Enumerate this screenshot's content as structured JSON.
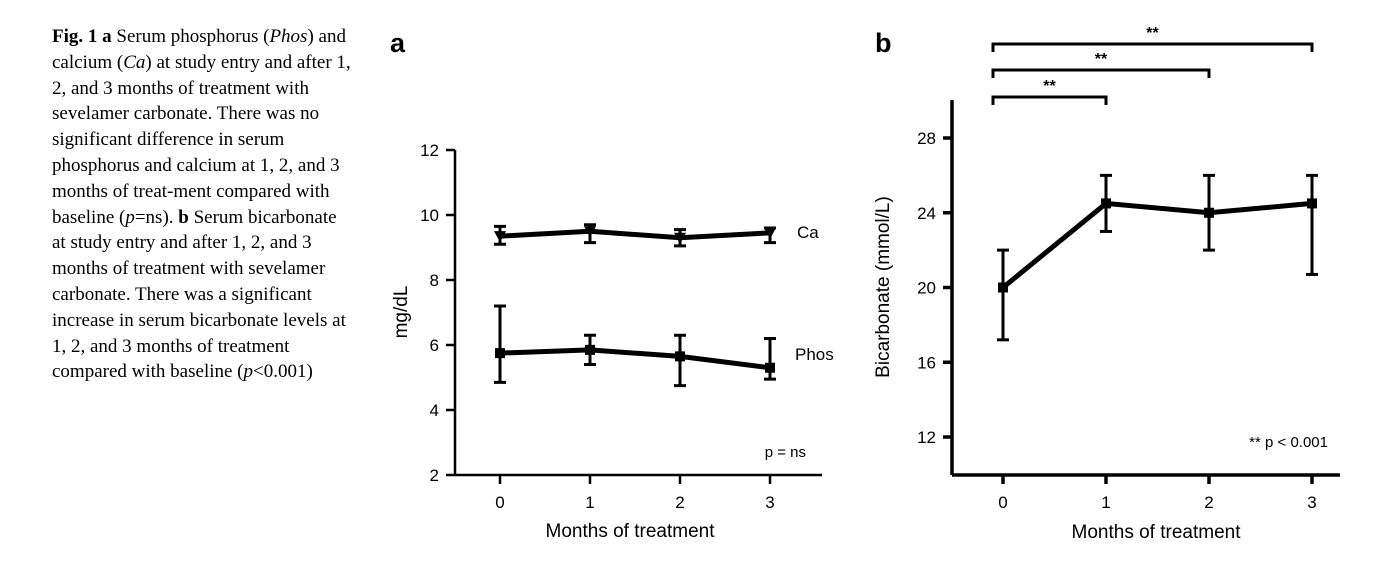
{
  "caption": {
    "segments": [
      {
        "t": "Fig. 1",
        "s": "b"
      },
      {
        "t": "  "
      },
      {
        "t": "a",
        "s": "b"
      },
      {
        "t": " Serum phosphorus ("
      },
      {
        "t": "Phos",
        "s": "i"
      },
      {
        "t": ") and calcium ("
      },
      {
        "t": "Ca",
        "s": "i"
      },
      {
        "t": ") at study entry and after 1, 2, and 3 months of treatment with sevelamer carbonate. There was no significant difference in serum phosphorus and calcium at 1, 2, and 3 months of treat-ment compared with baseline ("
      },
      {
        "t": "p",
        "s": "i"
      },
      {
        "t": "=ns). "
      },
      {
        "t": "b",
        "s": "b"
      },
      {
        "t": " Serum bicarbonate at study entry and after 1, 2, and 3 months of treatment with sevelamer carbonate. There was a significant increase in serum bicarbonate levels at 1, 2, and 3 months of treatment compared with baseline ("
      },
      {
        "t": "p",
        "s": "i"
      },
      {
        "t": "<0.001)"
      }
    ]
  },
  "chart_data": [
    {
      "panel": "a",
      "type": "line",
      "xlabel": "Months of treatment",
      "ylabel": "mg/dL",
      "x": [
        0,
        1,
        2,
        3
      ],
      "xticks": [
        "0",
        "1",
        "2",
        "3"
      ],
      "ylim": [
        2,
        12
      ],
      "yticks": [
        2,
        4,
        6,
        8,
        10,
        12
      ],
      "annotation": "p = ns",
      "series": [
        {
          "name": "Ca",
          "values": [
            9.35,
            9.5,
            9.3,
            9.45
          ],
          "err_low": [
            9.1,
            9.15,
            9.05,
            9.15
          ],
          "err_high": [
            9.65,
            9.7,
            9.55,
            9.6
          ],
          "marker": "triangle-down"
        },
        {
          "name": "Phos",
          "values": [
            5.75,
            5.85,
            5.65,
            5.3
          ],
          "err_low": [
            4.85,
            5.4,
            4.75,
            4.95
          ],
          "err_high": [
            7.2,
            6.3,
            6.3,
            6.2
          ],
          "marker": "square"
        }
      ]
    },
    {
      "panel": "b",
      "type": "line",
      "xlabel": "Months of treatment",
      "ylabel": "Bicarbonate (mmol/L)",
      "x": [
        0,
        1,
        2,
        3
      ],
      "xticks": [
        "0",
        "1",
        "2",
        "3"
      ],
      "ylim": [
        10,
        30
      ],
      "yticks": [
        12,
        16,
        20,
        24,
        28
      ],
      "annotation": "** p < 0.001",
      "series": [
        {
          "values": [
            20,
            24.5,
            24,
            24.5
          ],
          "err_low": [
            17.2,
            23,
            22,
            20.7
          ],
          "err_high": [
            22,
            26,
            26,
            26
          ],
          "marker": "square"
        }
      ],
      "significance_brackets": [
        {
          "from": 0,
          "to": 1,
          "label": "**"
        },
        {
          "from": 0,
          "to": 2,
          "label": "**"
        },
        {
          "from": 0,
          "to": 3,
          "label": "**"
        }
      ]
    }
  ]
}
